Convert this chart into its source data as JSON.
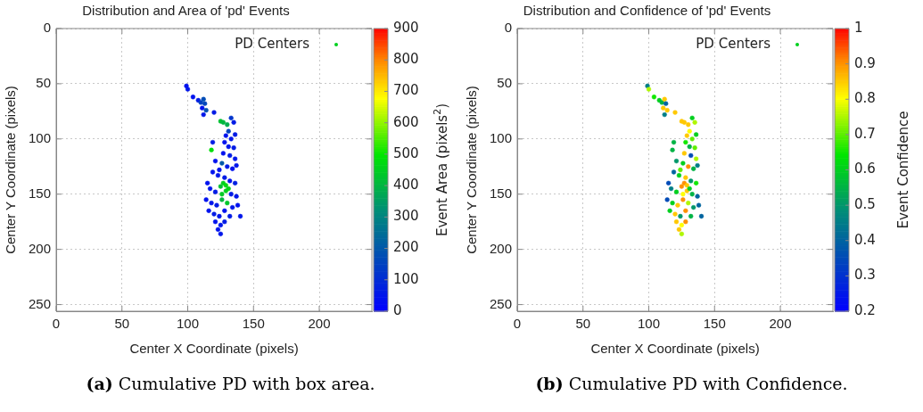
{
  "chart_data": [
    {
      "type": "scatter",
      "title": "Distribution and Area of 'pd' Events",
      "xlabel": "Center X Coordinate (pixels)",
      "ylabel": "Center Y Coordinate (pixels)",
      "clabel": "Event Area (pixels$^{2}$)",
      "xlim": [
        0,
        240
      ],
      "xticks": [
        0,
        50,
        100,
        150,
        200
      ],
      "ylim": [
        256,
        0
      ],
      "yticks": [
        0,
        50,
        100,
        150,
        200,
        250
      ],
      "clim": [
        0,
        900
      ],
      "cticks": [
        0,
        100,
        200,
        300,
        400,
        500,
        600,
        700,
        800,
        900
      ],
      "grid": true,
      "legend": "top right",
      "marker": "circle",
      "annotations": [
        "(a) Cumulative PD with box area."
      ],
      "series": [
        {
          "name": "PD Centers",
          "x": [
            99,
            100,
            104,
            108,
            110,
            112,
            113,
            111,
            114,
            112,
            120,
            125,
            127,
            130,
            133,
            135,
            131,
            129,
            133,
            136,
            128,
            131,
            135,
            118,
            127,
            132,
            136,
            121,
            126,
            130,
            134,
            137,
            119,
            123,
            128,
            132,
            136,
            115,
            117,
            121,
            125,
            129,
            133,
            137,
            114,
            118,
            122,
            126,
            130,
            134,
            138,
            116,
            120,
            124,
            128,
            132,
            140,
            121,
            125,
            128,
            123,
            125,
            127,
            129,
            126,
            131,
            119,
            124
          ],
          "values": [
            52,
            55,
            62,
            65,
            67,
            64,
            68,
            72,
            74,
            78,
            76,
            84,
            85,
            87,
            81,
            85,
            93,
            97,
            100,
            96,
            103,
            107,
            108,
            110,
            113,
            115,
            118,
            120,
            122,
            125,
            127,
            124,
            130,
            133,
            135,
            138,
            140,
            140,
            145,
            148,
            143,
            147,
            150,
            152,
            155,
            158,
            160,
            155,
            158,
            162,
            160,
            165,
            168,
            170,
            165,
            170,
            170,
            175,
            178,
            175,
            182,
            186,
            140,
            142,
            150,
            145,
            103,
            128
          ],
          "cvalues": [
            40,
            50,
            40,
            60,
            150,
            170,
            160,
            40,
            180,
            50,
            60,
            420,
            400,
            380,
            120,
            60,
            150,
            40,
            50,
            60,
            40,
            50,
            60,
            480,
            40,
            60,
            50,
            40,
            200,
            60,
            40,
            50,
            40,
            50,
            60,
            40,
            70,
            40,
            50,
            60,
            420,
            450,
            60,
            50,
            40,
            50,
            60,
            400,
            430,
            50,
            40,
            40,
            60,
            50,
            40,
            60,
            50,
            40,
            50,
            60,
            40,
            50,
            450,
            470,
            440,
            460,
            60,
            40
          ]
        }
      ]
    },
    {
      "type": "scatter",
      "title": "Distribution and Confidence of 'pd' Events",
      "xlabel": "Center X Coordinate (pixels)",
      "ylabel": "Center Y Coordinate (pixels)",
      "clabel": "Event Confidence",
      "xlim": [
        0,
        240
      ],
      "xticks": [
        0,
        50,
        100,
        150,
        200
      ],
      "ylim": [
        256,
        0
      ],
      "yticks": [
        0,
        50,
        100,
        150,
        200,
        250
      ],
      "clim": [
        0.2,
        1
      ],
      "cticks": [
        0.2,
        0.3,
        0.4,
        0.5,
        0.6,
        0.7,
        0.8,
        0.9,
        1
      ],
      "grid": true,
      "legend": "top right",
      "marker": "circle",
      "annotations": [
        "(b) Cumulative PD with Confidence."
      ],
      "series": [
        {
          "name": "PD Centers",
          "x": [
            99,
            100,
            104,
            108,
            110,
            112,
            113,
            111,
            114,
            112,
            120,
            125,
            127,
            130,
            133,
            135,
            131,
            129,
            133,
            136,
            128,
            131,
            135,
            118,
            127,
            132,
            136,
            121,
            126,
            130,
            134,
            137,
            119,
            123,
            128,
            132,
            136,
            115,
            117,
            121,
            125,
            129,
            133,
            137,
            114,
            118,
            122,
            126,
            130,
            134,
            138,
            116,
            120,
            124,
            128,
            132,
            140,
            121,
            125,
            128,
            123,
            125,
            127,
            129,
            126,
            131,
            119,
            124
          ],
          "values": [
            52,
            55,
            62,
            65,
            67,
            64,
            68,
            72,
            74,
            78,
            76,
            84,
            85,
            87,
            81,
            85,
            93,
            97,
            100,
            96,
            103,
            107,
            108,
            110,
            113,
            115,
            118,
            120,
            122,
            125,
            127,
            124,
            130,
            133,
            135,
            138,
            140,
            140,
            145,
            148,
            143,
            147,
            150,
            152,
            155,
            158,
            160,
            155,
            158,
            162,
            160,
            165,
            168,
            170,
            165,
            170,
            170,
            175,
            178,
            175,
            182,
            186,
            140,
            142,
            150,
            145,
            103,
            128
          ],
          "cvalues": [
            0.45,
            0.75,
            0.65,
            0.6,
            0.55,
            0.85,
            0.4,
            0.85,
            0.85,
            0.45,
            0.85,
            0.85,
            0.85,
            0.85,
            0.6,
            0.75,
            0.8,
            0.85,
            0.7,
            0.6,
            0.65,
            0.55,
            0.7,
            0.55,
            0.85,
            0.35,
            0.75,
            0.5,
            0.6,
            0.9,
            0.55,
            0.45,
            0.4,
            0.6,
            0.85,
            0.5,
            0.65,
            0.35,
            0.45,
            0.6,
            0.9,
            0.85,
            0.55,
            0.4,
            0.35,
            0.6,
            0.85,
            0.9,
            0.75,
            0.5,
            0.4,
            0.6,
            0.85,
            0.5,
            0.9,
            0.55,
            0.4,
            0.85,
            0.8,
            0.9,
            0.85,
            0.75,
            0.9,
            0.85,
            0.8,
            0.6,
            0.55,
            0.7
          ]
        }
      ]
    }
  ]
}
